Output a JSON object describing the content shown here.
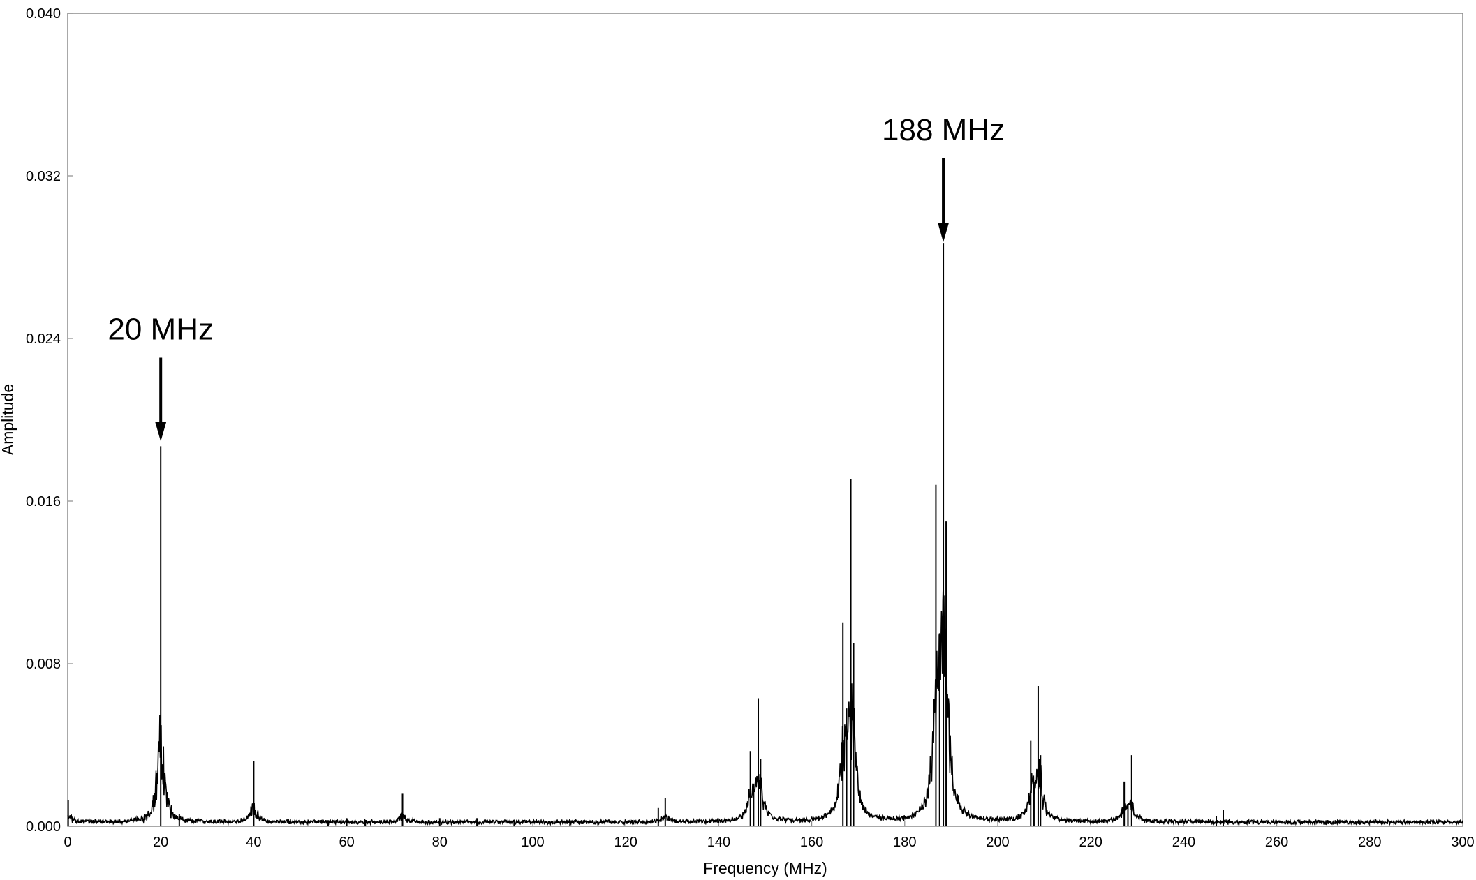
{
  "chart_data": {
    "type": "line",
    "title": "",
    "xlabel": "Frequency (MHz)",
    "ylabel": "Amplitude",
    "xlim": [
      0,
      300
    ],
    "ylim": [
      0,
      0.04
    ],
    "x_ticks": [
      0,
      20,
      40,
      60,
      80,
      100,
      120,
      140,
      160,
      180,
      200,
      220,
      240,
      260,
      280,
      300
    ],
    "y_ticks": [
      "0.000",
      "0.008",
      "0.016",
      "0.024",
      "0.032",
      "0.040"
    ],
    "grid": false,
    "legend": "none",
    "line_color": "#000000",
    "noise_floor": 0.0002,
    "peaks": [
      {
        "x": 0.1,
        "y": 0.0013
      },
      {
        "x": 20,
        "y": 0.0187
      },
      {
        "x": 24,
        "y": 0.0006
      },
      {
        "x": 40,
        "y": 0.0032
      },
      {
        "x": 56,
        "y": 0.0003
      },
      {
        "x": 60,
        "y": 0.0004
      },
      {
        "x": 64,
        "y": 0.0003
      },
      {
        "x": 72,
        "y": 0.0016
      },
      {
        "x": 80,
        "y": 0.0004
      },
      {
        "x": 88,
        "y": 0.0004
      },
      {
        "x": 96,
        "y": 0.0003
      },
      {
        "x": 108,
        "y": 0.0003
      },
      {
        "x": 127,
        "y": 0.0009
      },
      {
        "x": 128.5,
        "y": 0.0014
      },
      {
        "x": 146.8,
        "y": 0.0037
      },
      {
        "x": 147.5,
        "y": 0.0021
      },
      {
        "x": 148.5,
        "y": 0.0063
      },
      {
        "x": 149,
        "y": 0.0033
      },
      {
        "x": 166.7,
        "y": 0.01
      },
      {
        "x": 167.5,
        "y": 0.0058
      },
      {
        "x": 168.4,
        "y": 0.0171
      },
      {
        "x": 169,
        "y": 0.009
      },
      {
        "x": 186.7,
        "y": 0.0168
      },
      {
        "x": 187.5,
        "y": 0.0095
      },
      {
        "x": 188.3,
        "y": 0.0287
      },
      {
        "x": 188.9,
        "y": 0.015
      },
      {
        "x": 207.1,
        "y": 0.0042
      },
      {
        "x": 207.8,
        "y": 0.0022
      },
      {
        "x": 208.7,
        "y": 0.0069
      },
      {
        "x": 209.2,
        "y": 0.0035
      },
      {
        "x": 227.2,
        "y": 0.0022
      },
      {
        "x": 228,
        "y": 0.0011
      },
      {
        "x": 228.8,
        "y": 0.0035
      },
      {
        "x": 247,
        "y": 0.0005
      },
      {
        "x": 248.5,
        "y": 0.0008
      }
    ],
    "annotations": [
      {
        "text": "20 MHz",
        "x": 20,
        "y": 0.0188
      },
      {
        "text": "188 MHz",
        "x": 188.3,
        "y": 0.0286
      }
    ]
  }
}
